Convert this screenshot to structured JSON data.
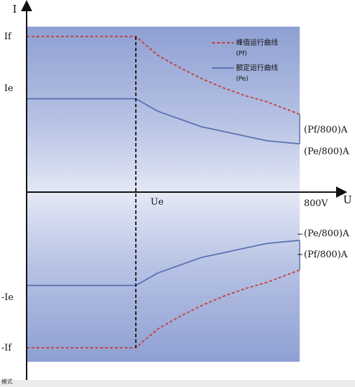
{
  "chart_data": {
    "type": "line",
    "axes": {
      "x_label": "U",
      "y_label": "I"
    },
    "x_ticks": [
      "Ue",
      "800V"
    ],
    "y_ticks": [
      "If",
      "Ie",
      "-Ie",
      "-If"
    ],
    "series": [
      {
        "name": "峰值运行曲线",
        "name_sub": "(Pf)",
        "style": "dashed",
        "color": "#c8392f",
        "points_upper": [
          [
            0,
            1.0
          ],
          [
            0.4,
            1.0
          ],
          [
            0.48,
            0.88
          ],
          [
            0.56,
            0.8
          ],
          [
            0.64,
            0.73
          ],
          [
            0.72,
            0.67
          ],
          [
            0.8,
            0.62
          ],
          [
            0.88,
            0.58
          ],
          [
            1.0,
            0.5
          ]
        ],
        "end_label_upper": "(Pf/800)A",
        "end_label_lower": "(Pf/800)A"
      },
      {
        "name": "额定运行曲线",
        "name_sub": "(Pe)",
        "style": "solid",
        "color": "#5a72b0",
        "points_upper": [
          [
            0,
            0.6
          ],
          [
            0.4,
            0.6
          ],
          [
            0.48,
            0.52
          ],
          [
            0.56,
            0.47
          ],
          [
            0.64,
            0.42
          ],
          [
            0.72,
            0.39
          ],
          [
            0.8,
            0.36
          ],
          [
            0.88,
            0.33
          ],
          [
            1.0,
            0.31
          ]
        ],
        "end_label_upper": "(Pe/800)A",
        "end_label_lower": "(Pe/800)A"
      }
    ],
    "bottom_text": "模式"
  }
}
